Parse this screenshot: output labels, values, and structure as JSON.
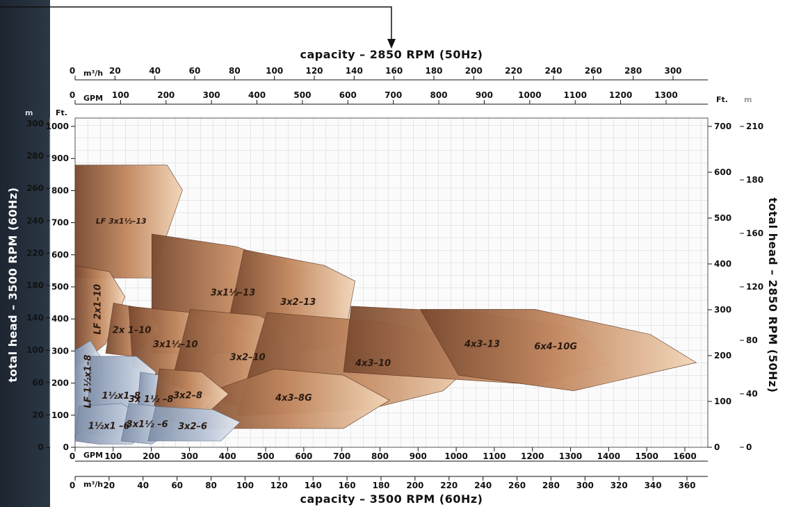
{
  "chart_data": {
    "type": "area",
    "title_top": "capacity – 2850 RPM (50Hz)",
    "title_bottom": "capacity – 3500 RPM (60Hz)",
    "title_left": "total head – 3500 RPM (60Hz)",
    "title_right": "total head – 2850 RPM (50Hz)",
    "units": {
      "m3h": "m³/h",
      "gpm": "GPM",
      "ft": "Ft.",
      "m": "m"
    },
    "top_m3h_ticks": [
      "0",
      "20",
      "40",
      "60",
      "80",
      "100",
      "120",
      "140",
      "160",
      "180",
      "200",
      "220",
      "240",
      "260",
      "280",
      "300"
    ],
    "top_gpm_ticks": [
      "0",
      "100",
      "200",
      "300",
      "400",
      "500",
      "600",
      "700",
      "800",
      "900",
      "1000",
      "1100",
      "1200",
      "1300"
    ],
    "bottom_gpm_ticks": [
      "0",
      "100",
      "200",
      "300",
      "400",
      "500",
      "600",
      "700",
      "800",
      "900",
      "1000",
      "1100",
      "1200",
      "1300",
      "1400",
      "1500",
      "1600"
    ],
    "bottom_m3h_ticks": [
      "0",
      "20",
      "40",
      "60",
      "80",
      "100",
      "120",
      "140",
      "160",
      "180",
      "200",
      "220",
      "240",
      "260",
      "280",
      "300",
      "320",
      "340",
      "360"
    ],
    "left_ft_ticks": [
      "0",
      "100",
      "200",
      "300",
      "400",
      "500",
      "600",
      "700",
      "800",
      "900",
      "1000"
    ],
    "left_m_ticks": [
      "0",
      "20",
      "60",
      "100",
      "140",
      "180",
      "220",
      "240",
      "260",
      "280",
      "300"
    ],
    "right_ft_ticks": [
      "0",
      "100",
      "200",
      "300",
      "400",
      "500",
      "600",
      "700"
    ],
    "right_m_ticks": [
      "0",
      "40",
      "80",
      "120",
      "160",
      "180",
      "210"
    ],
    "xlim_gpm_60hz": [
      0,
      1650
    ],
    "ylim_ft_60hz": [
      0,
      1050
    ],
    "regions": [
      {
        "name": "LF 3x1½–13",
        "family": "copper",
        "points": [
          [
            0,
            620
          ],
          [
            0,
            900
          ],
          [
            240,
            900
          ],
          [
            280,
            820
          ],
          [
            200,
            540
          ],
          [
            0,
            540
          ]
        ]
      },
      {
        "name": "3x1½–13",
        "family": "copper",
        "points": [
          [
            200,
            300
          ],
          [
            200,
            680
          ],
          [
            420,
            640
          ],
          [
            610,
            560
          ],
          [
            570,
            470
          ],
          [
            470,
            300
          ]
        ]
      },
      {
        "name": "3x2–13",
        "family": "copper",
        "points": [
          [
            400,
            400
          ],
          [
            440,
            630
          ],
          [
            650,
            580
          ],
          [
            730,
            530
          ],
          [
            700,
            330
          ],
          [
            570,
            300
          ]
        ]
      },
      {
        "name": "LF 2x1–10",
        "family": "copper",
        "points": [
          [
            0,
            250
          ],
          [
            0,
            580
          ],
          [
            90,
            560
          ],
          [
            130,
            480
          ],
          [
            80,
            330
          ]
        ]
      },
      {
        "name": "2x 1–10",
        "family": "copper",
        "points": [
          [
            80,
            300
          ],
          [
            100,
            460
          ],
          [
            190,
            440
          ],
          [
            220,
            370
          ],
          [
            150,
            290
          ]
        ]
      },
      {
        "name": "3x1½–10",
        "family": "copper",
        "points": [
          [
            150,
            260
          ],
          [
            140,
            450
          ],
          [
            300,
            430
          ],
          [
            390,
            370
          ],
          [
            340,
            250
          ],
          [
            250,
            200
          ]
        ]
      },
      {
        "name": "3x2–10",
        "family": "copper",
        "points": [
          [
            250,
            200
          ],
          [
            300,
            440
          ],
          [
            480,
            420
          ],
          [
            560,
            370
          ],
          [
            610,
            270
          ],
          [
            530,
            170
          ],
          [
            420,
            130
          ]
        ]
      },
      {
        "name": "4x3–10",
        "family": "copper",
        "points": [
          [
            420,
            100
          ],
          [
            500,
            430
          ],
          [
            800,
            400
          ],
          [
            950,
            360
          ],
          [
            1050,
            280
          ],
          [
            960,
            180
          ],
          [
            760,
            120
          ]
        ]
      },
      {
        "name": "4x3–13",
        "family": "copper",
        "points": [
          [
            700,
            240
          ],
          [
            720,
            450
          ],
          [
            1050,
            430
          ],
          [
            1300,
            380
          ],
          [
            1400,
            270
          ],
          [
            1200,
            200
          ]
        ]
      },
      {
        "name": "6x4–10G",
        "family": "copper",
        "points": [
          [
            1000,
            230
          ],
          [
            900,
            440
          ],
          [
            1200,
            440
          ],
          [
            1500,
            360
          ],
          [
            1620,
            270
          ],
          [
            1300,
            180
          ]
        ]
      },
      {
        "name": "4x3–8G",
        "family": "copper",
        "points": [
          [
            300,
            60
          ],
          [
            380,
            190
          ],
          [
            520,
            250
          ],
          [
            700,
            230
          ],
          [
            820,
            150
          ],
          [
            700,
            60
          ]
        ]
      },
      {
        "name": "LF 1½x1–8",
        "family": "steel",
        "points": [
          [
            0,
            40
          ],
          [
            0,
            310
          ],
          [
            40,
            340
          ],
          [
            70,
            280
          ],
          [
            60,
            80
          ]
        ]
      },
      {
        "name": "1½x1–8",
        "family": "steel",
        "points": [
          [
            30,
            40
          ],
          [
            40,
            290
          ],
          [
            160,
            290
          ],
          [
            210,
            240
          ],
          [
            180,
            80
          ],
          [
            100,
            40
          ]
        ]
      },
      {
        "name": "3x 1½ –8",
        "family": "steel",
        "points": [
          [
            160,
            80
          ],
          [
            170,
            240
          ],
          [
            220,
            230
          ],
          [
            240,
            150
          ],
          [
            200,
            60
          ]
        ]
      },
      {
        "name": "3x2–8",
        "family": "copper",
        "points": [
          [
            200,
            80
          ],
          [
            220,
            250
          ],
          [
            330,
            240
          ],
          [
            400,
            170
          ],
          [
            320,
            80
          ]
        ]
      },
      {
        "name": "1½x1 –6",
        "family": "steel",
        "points": [
          [
            0,
            20
          ],
          [
            10,
            130
          ],
          [
            120,
            140
          ],
          [
            190,
            90
          ],
          [
            150,
            10
          ],
          [
            60,
            10
          ]
        ]
      },
      {
        "name": "3x1½ –6",
        "family": "steel",
        "points": [
          [
            120,
            20
          ],
          [
            140,
            140
          ],
          [
            220,
            130
          ],
          [
            260,
            60
          ],
          [
            200,
            10
          ]
        ]
      },
      {
        "name": "3x2–6",
        "family": "steel",
        "points": [
          [
            190,
            20
          ],
          [
            210,
            130
          ],
          [
            360,
            120
          ],
          [
            430,
            80
          ],
          [
            380,
            20
          ],
          [
            270,
            20
          ]
        ]
      }
    ]
  }
}
